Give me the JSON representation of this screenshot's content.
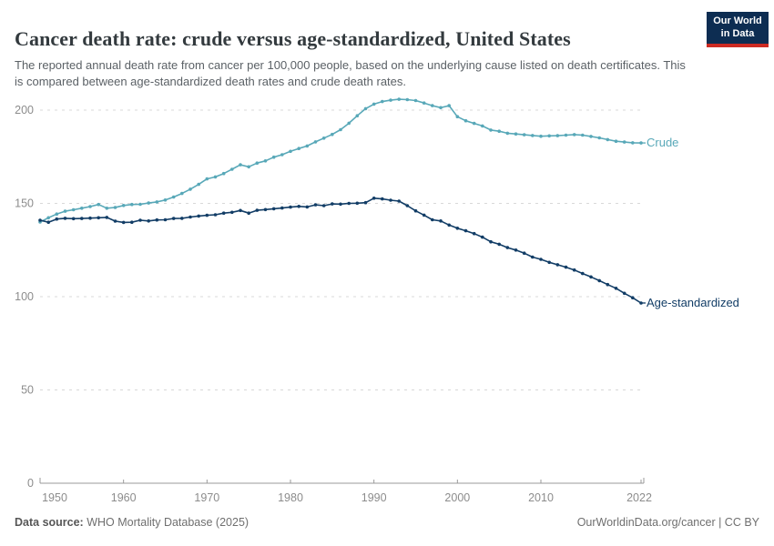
{
  "header": {
    "title": "Cancer death rate: crude versus age-standardized, United States",
    "subtitle": "The reported annual death rate from cancer per 100,000 people, based on the underlying cause listed on death certificates. This is compared between age-standardized death rates and crude death rates.",
    "logo": {
      "line1": "Our World",
      "line2": "in Data",
      "bg_color": "#0d2d52",
      "accent_color": "#cc2a22"
    }
  },
  "chart_data": {
    "type": "line",
    "title": "Cancer death rate: crude versus age-standardized, United States",
    "x": [
      1950,
      1951,
      1952,
      1953,
      1954,
      1955,
      1956,
      1957,
      1958,
      1959,
      1960,
      1961,
      1962,
      1963,
      1964,
      1965,
      1966,
      1967,
      1968,
      1969,
      1970,
      1971,
      1972,
      1973,
      1974,
      1975,
      1976,
      1977,
      1978,
      1979,
      1980,
      1981,
      1982,
      1983,
      1984,
      1985,
      1986,
      1987,
      1988,
      1989,
      1990,
      1991,
      1992,
      1993,
      1994,
      1995,
      1996,
      1997,
      1998,
      1999,
      2000,
      2001,
      2002,
      2003,
      2004,
      2005,
      2006,
      2007,
      2008,
      2009,
      2010,
      2011,
      2012,
      2013,
      2014,
      2015,
      2016,
      2017,
      2018,
      2019,
      2020,
      2021,
      2022
    ],
    "series": [
      {
        "name": "Crude",
        "color": "#58a8b8",
        "values": [
          140.0,
          142.3,
          144.3,
          145.8,
          146.6,
          147.4,
          148.3,
          149.4,
          147.4,
          147.8,
          148.9,
          149.4,
          149.5,
          150.2,
          150.8,
          151.8,
          153.4,
          155.3,
          157.6,
          160.2,
          163.1,
          164.2,
          166.0,
          168.3,
          170.7,
          169.6,
          171.6,
          172.8,
          174.8,
          176.1,
          177.9,
          179.4,
          180.8,
          183.0,
          185.0,
          187.0,
          189.5,
          193.0,
          197.0,
          200.8,
          203.2,
          204.6,
          205.3,
          205.8,
          205.6,
          205.1,
          203.8,
          202.4,
          201.3,
          202.4,
          196.5,
          194.3,
          192.9,
          191.5,
          189.3,
          188.7,
          187.6,
          187.2,
          186.8,
          186.4,
          186.0,
          186.2,
          186.3,
          186.6,
          186.9,
          186.6,
          185.9,
          185.1,
          184.2,
          183.3,
          182.9,
          182.5,
          182.4
        ]
      },
      {
        "name": "Age-standardized",
        "color": "#123d66",
        "values": [
          141.0,
          139.9,
          141.6,
          142.0,
          141.8,
          141.9,
          142.1,
          142.3,
          142.5,
          140.5,
          139.8,
          139.9,
          141.0,
          140.6,
          141.1,
          141.2,
          141.9,
          142.0,
          142.7,
          143.2,
          143.6,
          143.9,
          144.8,
          145.2,
          146.2,
          144.8,
          146.3,
          146.7,
          147.1,
          147.5,
          148.0,
          148.4,
          148.1,
          149.2,
          148.8,
          149.7,
          149.6,
          150.0,
          150.1,
          150.4,
          152.8,
          152.4,
          151.7,
          151.2,
          148.8,
          146.0,
          143.7,
          141.2,
          140.6,
          138.4,
          136.7,
          135.3,
          133.8,
          131.9,
          129.4,
          128.1,
          126.3,
          125.0,
          123.3,
          121.2,
          120.0,
          118.4,
          117.1,
          115.8,
          114.3,
          112.4,
          110.6,
          108.6,
          106.5,
          104.5,
          101.8,
          99.4,
          96.6
        ]
      }
    ],
    "y_ticks": [
      0,
      50,
      100,
      150,
      200
    ],
    "x_ticks": [
      1950,
      1960,
      1970,
      1980,
      1990,
      2000,
      2010,
      2022
    ],
    "ylim": [
      0,
      207
    ],
    "xlim": [
      1950,
      2022
    ],
    "grid": "horizontal-dashed",
    "legend": "end-of-line-labels"
  },
  "footer": {
    "source_label": "Data source:",
    "source_value": "WHO Mortality Database (2025)",
    "attribution": "OurWorldinData.org/cancer | CC BY"
  }
}
